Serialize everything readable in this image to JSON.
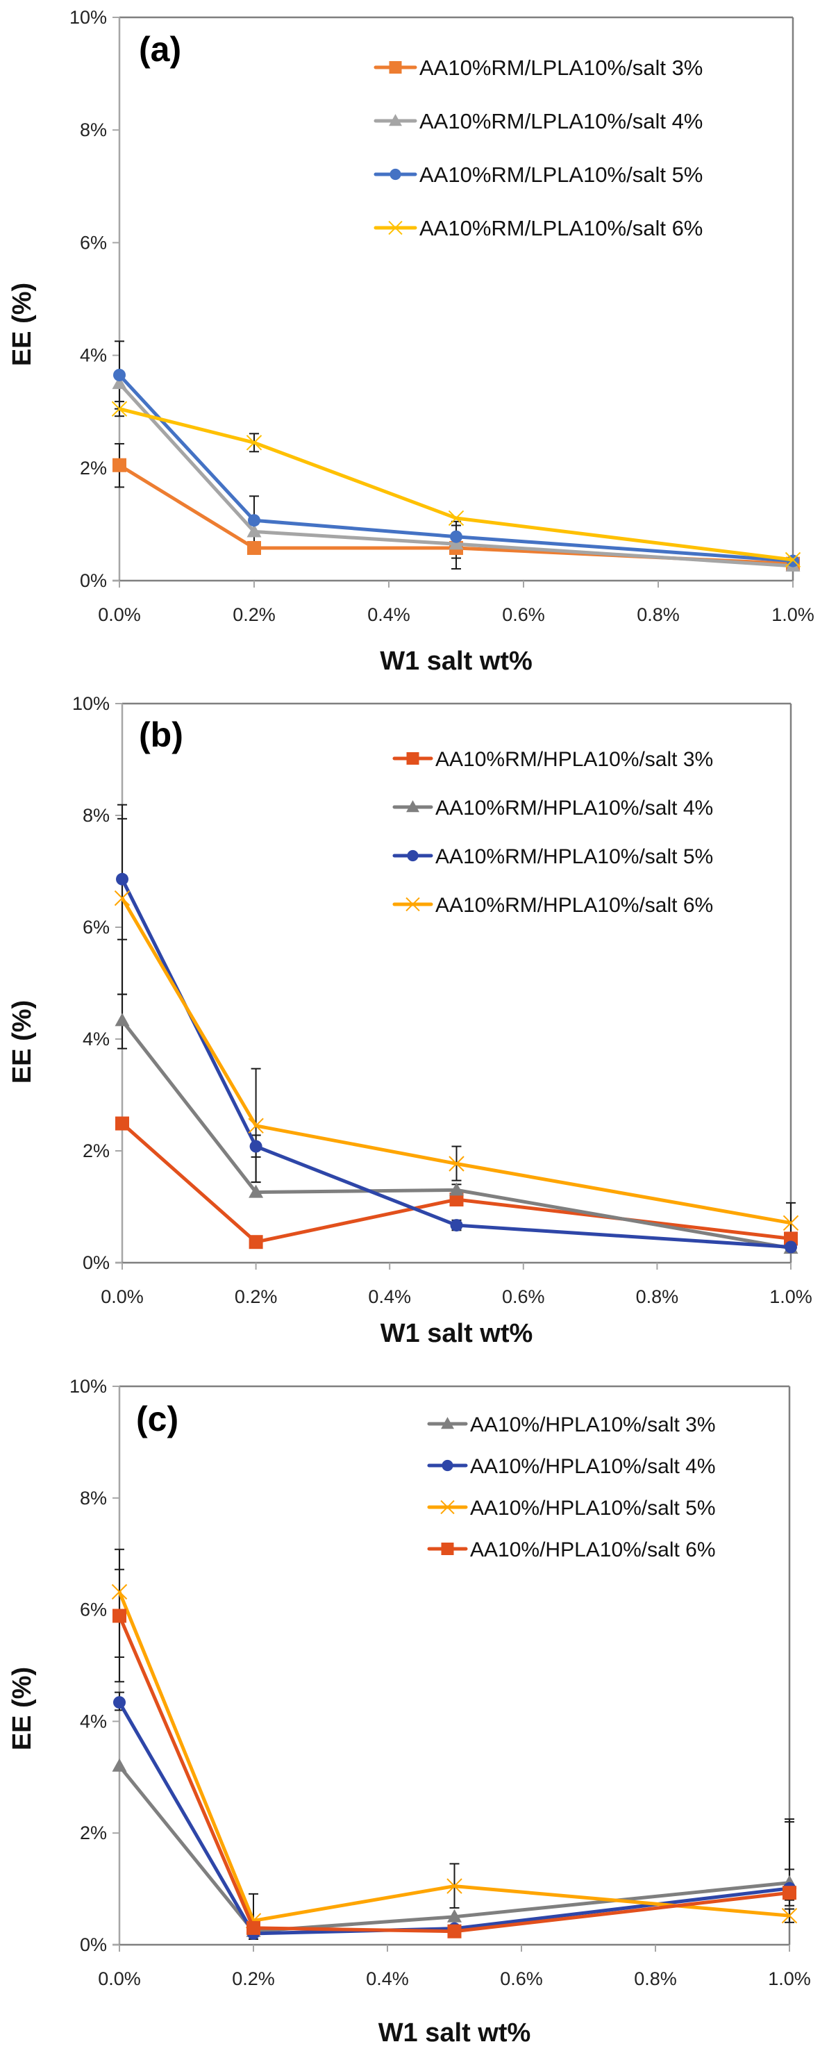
{
  "figure": {
    "x_axis_title": "W1 salt wt%",
    "y_axis_title": "EE (%)"
  },
  "chart_data": [
    {
      "type": "line",
      "panel_label": "(a)",
      "xlabel": "W1 salt wt%",
      "ylabel": "EE (%)",
      "x": [
        0.0,
        0.2,
        0.5,
        1.0
      ],
      "x_unit": "%",
      "xlim": [
        0.0,
        1.0
      ],
      "ylim": [
        0,
        10
      ],
      "x_ticks": [
        "0.0%",
        "0.2%",
        "0.4%",
        "0.6%",
        "0.8%",
        "1.0%"
      ],
      "x_tick_values": [
        0.0,
        0.2,
        0.4,
        0.6,
        0.8,
        1.0
      ],
      "y_ticks": [
        "0%",
        "2%",
        "4%",
        "6%",
        "8%",
        "10%"
      ],
      "y_tick_values": [
        0,
        2,
        4,
        6,
        8,
        10
      ],
      "grid": false,
      "legend_position": "top-right",
      "series": [
        {
          "name": "AA10%RM/LPLA10%/salt 3%",
          "color": "#ED7D31",
          "marker": "square",
          "values": [
            2.05,
            0.58,
            0.58,
            0.3
          ],
          "error_bars": [
            [
              1.66,
              2.43
            ],
            null,
            null,
            null
          ]
        },
        {
          "name": "AA10%RM/LPLA10%/salt 4%",
          "color": "#A5A5A5",
          "marker": "triangle",
          "values": [
            3.5,
            0.87,
            0.65,
            0.26
          ],
          "error_bars": [
            null,
            null,
            [
              0.21,
              1.05
            ],
            null
          ]
        },
        {
          "name": "AA10%RM/LPLA10%/salt 5%",
          "color": "#4472C4",
          "marker": "circle",
          "values": [
            3.65,
            1.07,
            0.78,
            0.35
          ],
          "error_bars": [
            [
              3.05,
              4.25
            ],
            [
              0.64,
              1.5
            ],
            [
              0.4,
              0.98
            ],
            null
          ]
        },
        {
          "name": "AA10%RM/LPLA10%/salt 6%",
          "color": "#FFC000",
          "marker": "x",
          "values": [
            3.05,
            2.45,
            1.11,
            0.37
          ],
          "error_bars": [
            [
              2.92,
              3.18
            ],
            [
              2.29,
              2.61
            ],
            null,
            null
          ]
        }
      ]
    },
    {
      "type": "line",
      "panel_label": "(b)",
      "xlabel": "W1 salt wt%",
      "ylabel": "EE (%)",
      "x": [
        0.0,
        0.2,
        0.5,
        1.0
      ],
      "x_unit": "%",
      "xlim": [
        0.0,
        1.0
      ],
      "ylim": [
        0,
        10
      ],
      "x_ticks": [
        "0.0%",
        "0.2%",
        "0.4%",
        "0.6%",
        "0.8%",
        "1.0%"
      ],
      "x_tick_values": [
        0.0,
        0.2,
        0.4,
        0.6,
        0.8,
        1.0
      ],
      "y_ticks": [
        "0%",
        "2%",
        "4%",
        "6%",
        "8%",
        "10%"
      ],
      "y_tick_values": [
        0,
        2,
        4,
        6,
        8,
        10
      ],
      "grid": false,
      "legend_position": "top-right",
      "series": [
        {
          "name": "AA10%RM/HPLA10%/salt 3%",
          "color": "#E2501C",
          "marker": "square",
          "values": [
            2.49,
            0.37,
            1.13,
            0.43
          ],
          "error_bars": [
            null,
            null,
            null,
            null
          ]
        },
        {
          "name": "AA10%RM/HPLA10%/salt 4%",
          "color": "#7F7F7F",
          "marker": "triangle",
          "values": [
            4.33,
            1.26,
            1.3,
            0.26
          ],
          "error_bars": [
            [
              3.83,
              4.8
            ],
            [
              1.44,
              2.28
            ],
            [
              1.2,
              1.4
            ],
            null
          ]
        },
        {
          "name": "AA10%RM/HPLA10%/salt 5%",
          "color": "#2E46A8",
          "marker": "circle",
          "values": [
            6.86,
            2.08,
            0.67,
            0.28
          ],
          "error_bars": [
            [
              5.78,
              7.94
            ],
            [
              1.89,
              2.28
            ],
            [
              0.58,
              0.76
            ],
            null
          ]
        },
        {
          "name": "AA10%RM/HPLA10%/salt 6%",
          "color": "#FFA500",
          "marker": "x",
          "values": [
            6.52,
            2.45,
            1.77,
            0.71
          ],
          "error_bars": [
            [
              4.8,
              8.19
            ],
            [
              1.44,
              3.47
            ],
            [
              1.47,
              2.08
            ],
            [
              0.35,
              1.07
            ]
          ]
        }
      ]
    },
    {
      "type": "line",
      "panel_label": "(c)",
      "xlabel": "W1 salt wt%",
      "ylabel": "EE (%)",
      "x": [
        0.0,
        0.2,
        0.5,
        1.0
      ],
      "x_unit": "%",
      "xlim": [
        0.0,
        1.0
      ],
      "ylim": [
        0,
        10
      ],
      "x_ticks": [
        "0.0%",
        "0.2%",
        "0.4%",
        "0.6%",
        "0.8%",
        "1.0%"
      ],
      "x_tick_values": [
        0.0,
        0.2,
        0.4,
        0.6,
        0.8,
        1.0
      ],
      "y_ticks": [
        "0%",
        "2%",
        "4%",
        "6%",
        "8%",
        "10%"
      ],
      "y_tick_values": [
        0,
        2,
        4,
        6,
        8,
        10
      ],
      "grid": false,
      "legend_position": "top-right",
      "series": [
        {
          "name": "AA10%/HPLA10%/salt 3%",
          "color": "#7F7F7F",
          "marker": "triangle",
          "values": [
            3.2,
            0.24,
            0.5,
            1.11
          ],
          "error_bars": [
            null,
            null,
            null,
            [
              0.85,
              2.2
            ]
          ]
        },
        {
          "name": "AA10%/HPLA10%/salt 4%",
          "color": "#2E46A8",
          "marker": "circle",
          "values": [
            4.34,
            0.2,
            0.29,
            1.01
          ],
          "error_bars": [
            [
              4.2,
              4.52
            ],
            null,
            null,
            [
              0.7,
              1.35
            ]
          ]
        },
        {
          "name": "AA10%/HPLA10%/salt 5%",
          "color": "#FFA500",
          "marker": "x",
          "values": [
            6.32,
            0.43,
            1.05,
            0.52
          ],
          "error_bars": [
            [
              4.71,
              7.08
            ],
            [
              0.1,
              0.91
            ],
            [
              0.66,
              1.45
            ],
            [
              0.4,
              0.64
            ]
          ]
        },
        {
          "name": "AA10%/HPLA10%/salt 6%",
          "color": "#E2501C",
          "marker": "square",
          "values": [
            5.89,
            0.3,
            0.24,
            0.93
          ],
          "error_bars": [
            [
              5.15,
              6.72
            ],
            null,
            null,
            [
              0.8,
              2.25
            ]
          ]
        }
      ]
    }
  ]
}
